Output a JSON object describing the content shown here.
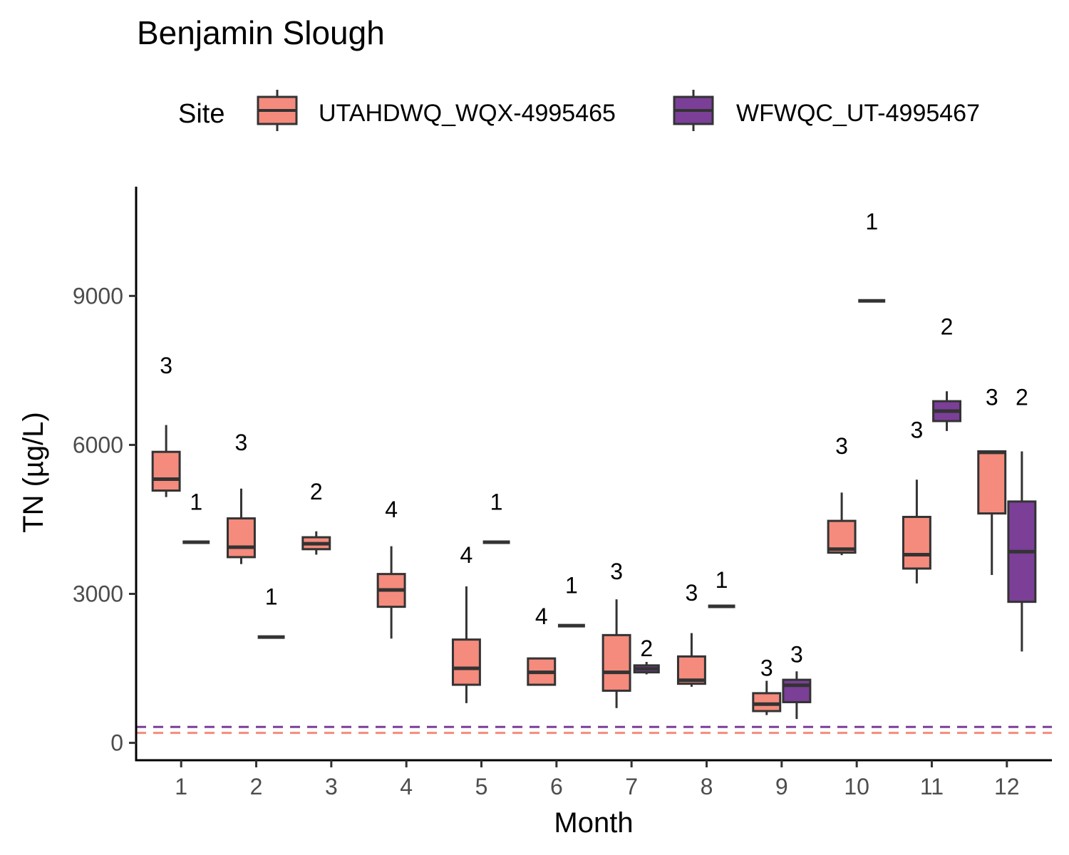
{
  "chart_data": {
    "type": "boxplot",
    "title": "Benjamin Slough",
    "xlabel": "Month",
    "ylabel": "TN (µg/L)",
    "ylim": [
      -350,
      11200
    ],
    "y_ticks": [
      0,
      3000,
      6000,
      9000
    ],
    "categories": [
      "1",
      "2",
      "3",
      "4",
      "5",
      "6",
      "7",
      "8",
      "9",
      "10",
      "11",
      "12"
    ],
    "legend": {
      "title": "Site",
      "position": "top"
    },
    "grid": false,
    "series": [
      {
        "name": "UTAHDWQ_WQX-4995465",
        "color": "#f48b7d",
        "boxes": [
          {
            "month": "1",
            "min": 4950,
            "q1": 5080,
            "median": 5310,
            "q3": 5860,
            "max": 6400,
            "n": "3"
          },
          {
            "month": "2",
            "min": 3600,
            "q1": 3740,
            "median": 3940,
            "q3": 4520,
            "max": 5120,
            "n": "3"
          },
          {
            "month": "3",
            "min": 3790,
            "q1": 3900,
            "median": 4010,
            "q3": 4140,
            "max": 4260,
            "n": "2"
          },
          {
            "month": "4",
            "min": 2100,
            "q1": 2740,
            "median": 3080,
            "q3": 3400,
            "max": 3960,
            "n": "4"
          },
          {
            "month": "5",
            "min": 800,
            "q1": 1170,
            "median": 1500,
            "q3": 2080,
            "max": 3150,
            "n": "4"
          },
          {
            "month": "6",
            "min": 1170,
            "q1": 1170,
            "median": 1420,
            "q3": 1700,
            "max": 1700,
            "n": "4"
          },
          {
            "month": "7",
            "min": 700,
            "q1": 1050,
            "median": 1420,
            "q3": 2170,
            "max": 2890,
            "n": "3"
          },
          {
            "month": "8",
            "min": 1130,
            "q1": 1190,
            "median": 1260,
            "q3": 1740,
            "max": 2210,
            "n": "3"
          },
          {
            "month": "9",
            "min": 560,
            "q1": 640,
            "median": 780,
            "q3": 1000,
            "max": 1250,
            "n": "3"
          },
          {
            "month": "10",
            "min": 3780,
            "q1": 3830,
            "median": 3900,
            "q3": 4470,
            "max": 5040,
            "n": "3"
          },
          {
            "month": "11",
            "min": 3210,
            "q1": 3510,
            "median": 3790,
            "q3": 4550,
            "max": 5300,
            "n": "3"
          },
          {
            "month": "12",
            "min": 3380,
            "q1": 4620,
            "median": 5850,
            "q3": 5870,
            "max": 5880,
            "n": "3"
          }
        ],
        "criterion_line": 200
      },
      {
        "name": "WFWQC_UT-4995467",
        "color": "#7b3f98",
        "boxes": [
          {
            "month": "1",
            "value": 4040,
            "n": "1"
          },
          {
            "month": "2",
            "value": 2130,
            "n": "1"
          },
          {
            "month": "5",
            "value": 4040,
            "n": "1"
          },
          {
            "month": "6",
            "value": 2360,
            "n": "1"
          },
          {
            "month": "7",
            "min": 1380,
            "q1": 1420,
            "median": 1490,
            "q3": 1560,
            "max": 1630,
            "n": "2",
            "style": "thick"
          },
          {
            "month": "8",
            "value": 2750,
            "n": "1"
          },
          {
            "month": "9",
            "min": 480,
            "q1": 820,
            "median": 1160,
            "q3": 1270,
            "max": 1440,
            "n": "3"
          },
          {
            "month": "10",
            "value": 8900,
            "n": "1"
          },
          {
            "month": "11",
            "min": 6280,
            "q1": 6480,
            "median": 6680,
            "q3": 6880,
            "max": 7080,
            "n": "2"
          },
          {
            "month": "12",
            "min": 1840,
            "q1": 2840,
            "median": 3850,
            "q3": 4860,
            "max": 5870,
            "n": "2"
          }
        ],
        "criterion_line": 320
      }
    ],
    "label_positions": [
      {
        "series": 0,
        "month": "1",
        "y": 7600
      },
      {
        "series": 1,
        "month": "1",
        "y": 4850
      },
      {
        "series": 0,
        "month": "2",
        "y": 6050
      },
      {
        "series": 1,
        "month": "2",
        "y": 2940
      },
      {
        "series": 0,
        "month": "3",
        "y": 5060
      },
      {
        "series": 0,
        "month": "4",
        "y": 4700
      },
      {
        "series": 0,
        "month": "5",
        "y": 3780
      },
      {
        "series": 1,
        "month": "5",
        "y": 4850
      },
      {
        "series": 0,
        "month": "6",
        "y": 2550
      },
      {
        "series": 1,
        "month": "6",
        "y": 3170
      },
      {
        "series": 0,
        "month": "7",
        "y": 3450
      },
      {
        "series": 1,
        "month": "7",
        "y": 1900
      },
      {
        "series": 0,
        "month": "8",
        "y": 3020
      },
      {
        "series": 1,
        "month": "8",
        "y": 3280
      },
      {
        "series": 0,
        "month": "9",
        "y": 1510
      },
      {
        "series": 1,
        "month": "9",
        "y": 1780
      },
      {
        "series": 0,
        "month": "10",
        "y": 5980
      },
      {
        "series": 1,
        "month": "10",
        "y": 10500
      },
      {
        "series": 0,
        "month": "11",
        "y": 6300
      },
      {
        "series": 1,
        "month": "11",
        "y": 8380
      },
      {
        "series": 0,
        "month": "12",
        "y": 6960
      },
      {
        "series": 1,
        "month": "12",
        "y": 6960
      }
    ]
  }
}
